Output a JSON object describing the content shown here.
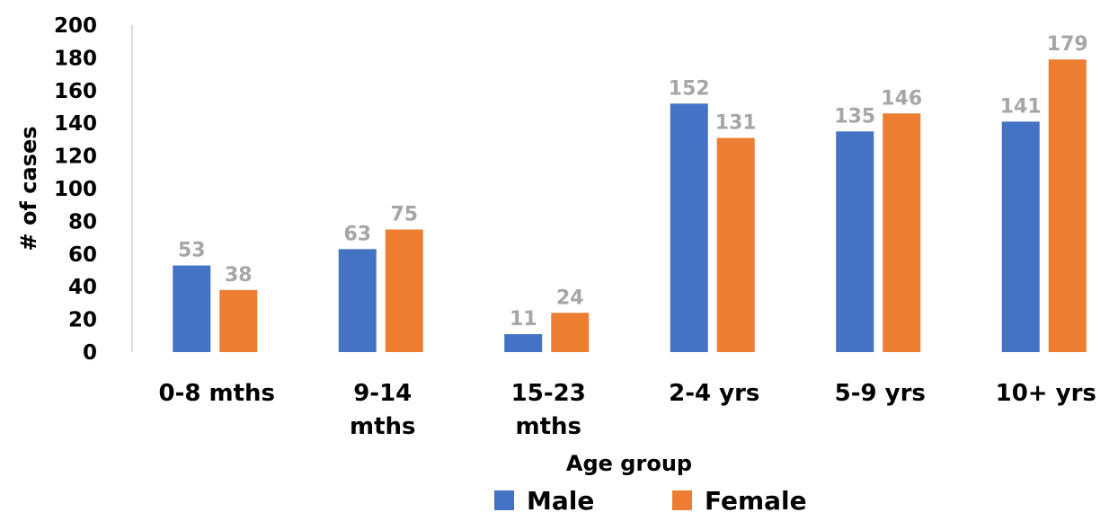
{
  "chart_data": {
    "type": "bar",
    "categories": [
      [
        "0-8 mths"
      ],
      [
        "9-14",
        "mths"
      ],
      [
        "15-23",
        "mths"
      ],
      [
        "2-4 yrs"
      ],
      [
        "5-9 yrs"
      ],
      [
        "10+  yrs"
      ]
    ],
    "series": [
      {
        "name": "Male",
        "color": "#4472c4",
        "values": [
          53,
          63,
          11,
          152,
          135,
          141
        ]
      },
      {
        "name": "Female",
        "color": "#ed7d31",
        "values": [
          38,
          75,
          24,
          131,
          146,
          179
        ]
      }
    ],
    "xlabel": "Age group",
    "ylabel": "# of cases",
    "ylim": [
      0,
      200
    ],
    "yticks": [
      0,
      20,
      40,
      60,
      80,
      100,
      120,
      140,
      160,
      180,
      200
    ],
    "data_label_color": "#a6a6a6",
    "grid": false,
    "legend_position": "bottom"
  }
}
